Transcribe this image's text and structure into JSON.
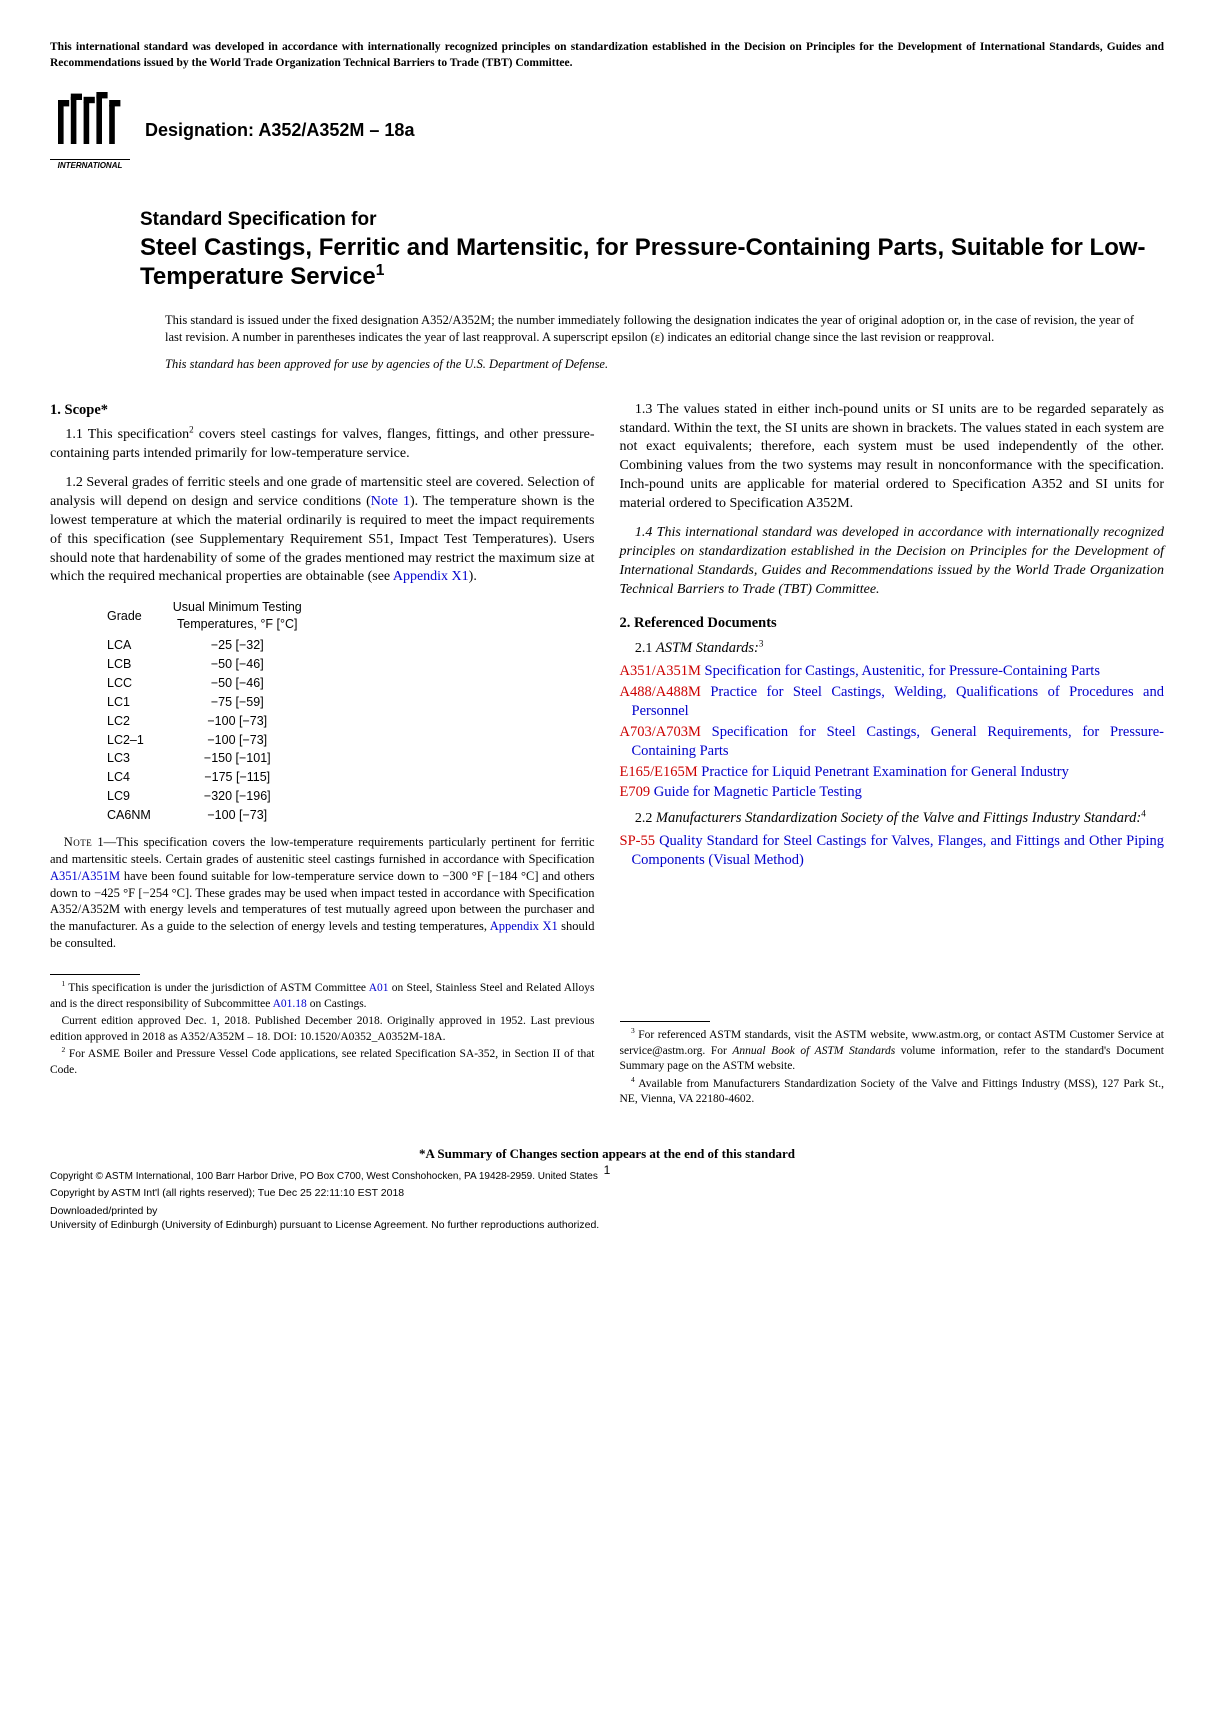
{
  "top_notice": "This international standard was developed in accordance with internationally recognized principles on standardization established in the Decision on Principles for the Development of International Standards, Guides and Recommendations issued by the World Trade Organization Technical Barriers to Trade (TBT) Committee.",
  "logo_label": "INTERNATIONAL",
  "designation_prefix": "Designation: A352/A352M ",
  "designation_suffix": " 18a",
  "title_prefix": "Standard Specification for",
  "title_main": "Steel Castings, Ferritic and Martensitic, for Pressure-Containing Parts, Suitable for Low-Temperature Service",
  "issuance_text": "This standard is issued under the fixed designation A352/A352M; the number immediately following the designation indicates the year of original adoption or, in the case of revision, the year of last revision. A number in parentheses indicates the year of last reapproval. A superscript epsilon (ε) indicates an editorial change since the last revision or reapproval.",
  "dod_approval": "This standard has been approved for use by agencies of the U.S. Department of Defense.",
  "sec1_head": "1. Scope*",
  "sec1_1a": "1.1 This specification",
  "sec1_1b": " covers steel castings for valves, flanges, fittings, and other pressure-containing parts intended primarily for low-temperature service.",
  "sec1_2a": "1.2 Several grades of ferritic steels and one grade of martensitic steel are covered. Selection of analysis will depend on design and service conditions (",
  "sec1_2_note": "Note 1",
  "sec1_2b": "). The temperature shown is the lowest temperature at which the material ordinarily is required to meet the impact requirements of this specification (see Supplementary Requirement S51, Impact Test Temperatures). Users should note that hardenability of some of the grades mentioned may restrict the maximum size at which the required mechanical properties are obtainable (see ",
  "sec1_2_appx": "Appendix X1",
  "sec1_2c": ").",
  "table_h1": "Grade",
  "table_h2a": "Usual Minimum Testing",
  "table_h2b": "Temperatures, °F [°C]",
  "grades": [
    {
      "g": "LCA",
      "t": "−25 [−32]"
    },
    {
      "g": "LCB",
      "t": "−50 [−46]"
    },
    {
      "g": "LCC",
      "t": "−50 [−46]"
    },
    {
      "g": "LC1",
      "t": "−75 [−59]"
    },
    {
      "g": "LC2",
      "t": "−100 [−73]"
    },
    {
      "g": "LC2–1",
      "t": "−100 [−73]"
    },
    {
      "g": "LC3",
      "t": "−150 [−101]"
    },
    {
      "g": "LC4",
      "t": "−175 [−115]"
    },
    {
      "g": "LC9",
      "t": "−320 [−196]"
    },
    {
      "g": "CA6NM",
      "t": "−100 [−73]"
    }
  ],
  "note1_label": "Note",
  "note1_a": " 1—This specification covers the low-temperature requirements particularly pertinent for ferritic and martensitic steels. Certain grades of austenitic steel castings furnished in accordance with Specification ",
  "note1_ref": "A351/A351M",
  "note1_b": " have been found suitable for low-temperature service down to −300 °F [−184 °C] and others down to −425 °F [−254 °C]. These grades may be used when impact tested in accordance with Specification A352/A352M with energy levels and temperatures of test mutually agreed upon between the purchaser and the manufacturer. As a guide to the selection of energy levels and testing temperatures, ",
  "note1_appx": "Appendix X1",
  "note1_c": " should be consulted.",
  "fn1a": " This specification is under the jurisdiction of ASTM Committee ",
  "fn1_link1": "A01",
  "fn1b": " on Steel, Stainless Steel and Related Alloys and is the direct responsibility of Subcommittee ",
  "fn1_link2": "A01.18",
  "fn1c": " on Castings.",
  "fn1d": "Current edition approved Dec. 1, 2018. Published December 2018. Originally approved in 1952. Last previous edition approved in 2018 as A352/A352M – 18. DOI: 10.1520/A0352_A0352M-18A.",
  "fn2": " For ASME Boiler and Pressure Vessel Code applications, see related Specification SA-352, in Section II of that Code.",
  "sec1_3": "1.3 The values stated in either inch-pound units or SI units are to be regarded separately as standard. Within the text, the SI units are shown in brackets. The values stated in each system are not exact equivalents; therefore, each system must be used independently of the other. Combining values from the two systems may result in nonconformance with the specification. Inch-pound units are applicable for material ordered to Specification A352 and SI units for material ordered to Specification A352M.",
  "sec1_4": "1.4 This international standard was developed in accordance with internationally recognized principles on standardization established in the Decision on Principles for the Development of International Standards, Guides and Recommendations issued by the World Trade Organization Technical Barriers to Trade (TBT) Committee.",
  "sec2_head": "2. Referenced Documents",
  "sec2_1": "2.1 ",
  "sec2_1_label": "ASTM Standards:",
  "refs_astm": [
    {
      "code": "A351/A351M",
      "title": " Specification for Castings, Austenitic, for Pressure-Containing Parts"
    },
    {
      "code": "A488/A488M",
      "title": " Practice for Steel Castings, Welding, Qualifications of Procedures and Personnel"
    },
    {
      "code": "A703/A703M",
      "title": " Specification for Steel Castings, General Requirements, for Pressure-Containing Parts"
    },
    {
      "code": "E165/E165M",
      "title": " Practice for Liquid Penetrant Examination for General Industry"
    },
    {
      "code": "E709",
      "title": " Guide for Magnetic Particle Testing"
    }
  ],
  "sec2_2a": "2.2 ",
  "sec2_2_label": "Manufacturers Standardization Society of the Valve and Fittings Industry Standard:",
  "refs_mss": [
    {
      "code": "SP-55",
      "title": " Quality Standard for Steel Castings for Valves, Flanges, and Fittings and Other Piping Components (Visual Method)"
    }
  ],
  "fn3a": " For referenced ASTM standards, visit the ASTM website, www.astm.org, or contact ASTM Customer Service at service@astm.org. For ",
  "fn3_ital": "Annual Book of ASTM Standards",
  "fn3b": " volume information, refer to the standard's Document Summary page on the ASTM website.",
  "fn4": " Available from Manufacturers Standardization Society of the Valve and Fittings Industry (MSS), 127 Park St., NE, Vienna, VA 22180-4602.",
  "summary_note": "*A Summary of Changes section appears at the end of this standard",
  "copyright_main": "Copyright © ASTM International, 100 Barr Harbor Drive, PO Box C700, West Conshohocken, PA 19428-2959. United States",
  "cr1": "Copyright by ASTM Int'l (all rights reserved); Tue Dec 25 22:11:10 EST 2018",
  "cr2": "Downloaded/printed by",
  "cr3": "University of Edinburgh (University of Edinburgh) pursuant to License Agreement. No further reproductions authorized.",
  "page_num": "1"
}
